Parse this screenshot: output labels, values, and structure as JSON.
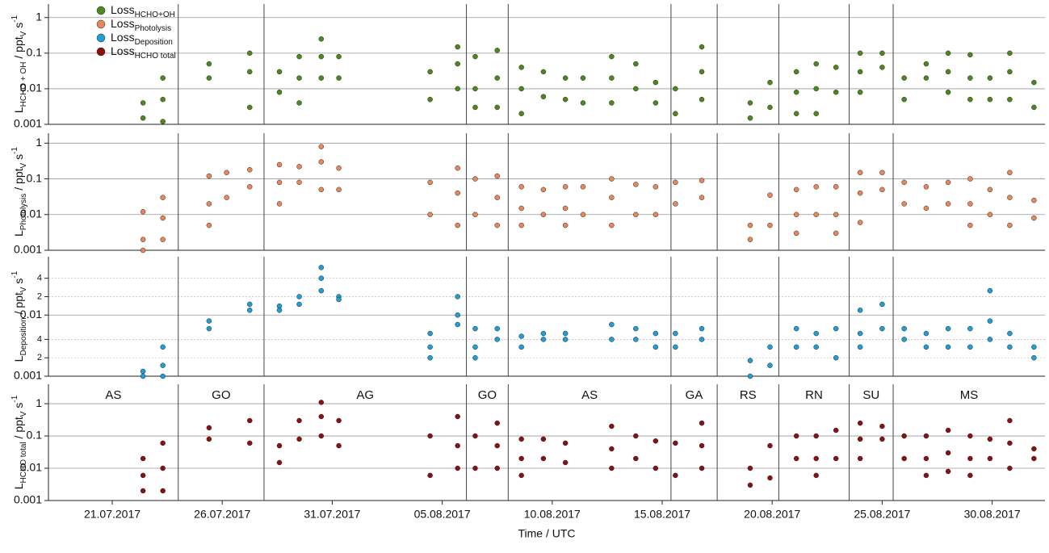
{
  "chart_data": [
    {
      "type": "scatter",
      "log_y": true,
      "grid": true,
      "legend": "upper left",
      "ylabel": [
        {
          "text": "L"
        },
        {
          "text": "HCHO + OH",
          "shift": "sub"
        },
        {
          "text": " / ppt"
        },
        {
          "text": "V",
          "shift": "sub"
        },
        {
          "text": " s"
        },
        {
          "text": "-1",
          "shift": "super"
        }
      ],
      "xlim": [
        199.1,
        244.4
      ],
      "ylim": [
        0.001,
        2.4
      ],
      "yticks": [
        0.001,
        0.01,
        0.1,
        1
      ],
      "series": [
        {
          "name": "Loss",
          "name_subscript": "HCHO+OH",
          "color": "#4a8a1c",
          "x": [
            203.4,
            203.4,
            204.3,
            204.3,
            204.3,
            206.4,
            206.4,
            208.25,
            208.25,
            208.25,
            209.6,
            209.6,
            210.5,
            210.5,
            210.5,
            211.5,
            211.5,
            211.5,
            212.3,
            212.3,
            216.45,
            216.45,
            217.7,
            217.7,
            217.7,
            218.5,
            218.5,
            218.5,
            219.5,
            219.5,
            219.5,
            220.6,
            220.6,
            220.6,
            221.6,
            221.6,
            222.6,
            222.6,
            223.4,
            223.4,
            224.7,
            224.7,
            224.7,
            225.8,
            225.8,
            226.7,
            226.7,
            227.6,
            227.6,
            228.8,
            228.8,
            228.8,
            231.0,
            231.0,
            231.9,
            231.9,
            233.1,
            233.1,
            233.1,
            234.0,
            234.0,
            234.0,
            234.9,
            234.9,
            236.0,
            236.0,
            236.0,
            237.0,
            237.0,
            238.0,
            238.0,
            239.0,
            239.0,
            240.0,
            240.0,
            240.0,
            241.0,
            241.0,
            241.0,
            241.9,
            241.9,
            242.8,
            242.8,
            242.8,
            243.9,
            243.9
          ],
          "values": [
            0.004,
            0.0015,
            0.02,
            0.005,
            0.0012,
            0.05,
            0.02,
            0.1,
            0.03,
            0.003,
            0.03,
            0.008,
            0.08,
            0.02,
            0.004,
            0.25,
            0.08,
            0.02,
            0.08,
            0.02,
            0.03,
            0.005,
            0.15,
            0.05,
            0.01,
            0.08,
            0.01,
            0.003,
            0.12,
            0.02,
            0.003,
            0.04,
            0.01,
            0.002,
            0.03,
            0.006,
            0.02,
            0.005,
            0.02,
            0.004,
            0.08,
            0.02,
            0.004,
            0.05,
            0.01,
            0.015,
            0.004,
            0.01,
            0.002,
            0.15,
            0.03,
            0.005,
            0.004,
            0.0015,
            0.015,
            0.003,
            0.03,
            0.008,
            0.002,
            0.05,
            0.01,
            0.002,
            0.04,
            0.008,
            0.1,
            0.03,
            0.008,
            0.1,
            0.04,
            0.02,
            0.005,
            0.05,
            0.02,
            0.1,
            0.03,
            0.008,
            0.09,
            0.02,
            0.005,
            0.02,
            0.005,
            0.1,
            0.03,
            0.005,
            0.015,
            0.003
          ]
        }
      ]
    },
    {
      "type": "scatter",
      "log_y": true,
      "grid": true,
      "ylabel": [
        {
          "text": "L"
        },
        {
          "text": "Photolysis",
          "shift": "sub"
        },
        {
          "text": " / ppt"
        },
        {
          "text": "V",
          "shift": "sub"
        },
        {
          "text": " s"
        },
        {
          "text": "-1",
          "shift": "super"
        }
      ],
      "xlim": [
        199.1,
        244.4
      ],
      "ylim": [
        0.001,
        1.9
      ],
      "yticks": [
        0.001,
        0.01,
        0.1,
        1
      ],
      "series": [
        {
          "name": "Loss",
          "name_subscript": "Photolysis",
          "color": "#e8875a",
          "x": [
            203.4,
            203.4,
            203.4,
            204.3,
            204.3,
            204.3,
            206.4,
            206.4,
            206.4,
            207.2,
            207.2,
            208.25,
            208.25,
            209.6,
            209.6,
            209.6,
            210.5,
            210.5,
            211.5,
            211.5,
            211.5,
            212.3,
            212.3,
            216.45,
            216.45,
            217.7,
            217.7,
            217.7,
            218.5,
            218.5,
            219.5,
            219.5,
            219.5,
            220.6,
            220.6,
            220.6,
            221.6,
            221.6,
            222.6,
            222.6,
            222.6,
            223.4,
            223.4,
            224.7,
            224.7,
            224.7,
            225.8,
            225.8,
            226.7,
            226.7,
            227.6,
            227.6,
            228.8,
            228.8,
            231.0,
            231.0,
            231.9,
            231.9,
            233.1,
            233.1,
            233.1,
            234.0,
            234.0,
            234.9,
            234.9,
            234.9,
            236.0,
            236.0,
            236.0,
            237.0,
            237.0,
            238.0,
            238.0,
            239.0,
            239.0,
            240.0,
            240.0,
            241.0,
            241.0,
            241.0,
            241.9,
            241.9,
            242.8,
            242.8,
            242.8,
            243.9,
            243.9
          ],
          "values": [
            0.012,
            0.002,
            0.001,
            0.03,
            0.008,
            0.002,
            0.12,
            0.02,
            0.005,
            0.15,
            0.03,
            0.18,
            0.06,
            0.25,
            0.08,
            0.02,
            0.22,
            0.08,
            0.8,
            0.3,
            0.05,
            0.2,
            0.05,
            0.08,
            0.01,
            0.2,
            0.04,
            0.005,
            0.1,
            0.01,
            0.12,
            0.03,
            0.005,
            0.06,
            0.015,
            0.005,
            0.05,
            0.01,
            0.06,
            0.015,
            0.005,
            0.06,
            0.01,
            0.1,
            0.03,
            0.005,
            0.07,
            0.01,
            0.06,
            0.01,
            0.08,
            0.02,
            0.09,
            0.03,
            0.005,
            0.002,
            0.035,
            0.005,
            0.05,
            0.01,
            0.003,
            0.06,
            0.01,
            0.06,
            0.01,
            0.003,
            0.15,
            0.04,
            0.006,
            0.15,
            0.05,
            0.08,
            0.02,
            0.06,
            0.015,
            0.08,
            0.02,
            0.1,
            0.02,
            0.005,
            0.05,
            0.01,
            0.15,
            0.03,
            0.005,
            0.025,
            0.008
          ]
        }
      ]
    },
    {
      "type": "scatter",
      "log_y": true,
      "grid": true,
      "ylabel": [
        {
          "text": "L"
        },
        {
          "text": "Deposition",
          "shift": "sub"
        },
        {
          "text": " / ppt"
        },
        {
          "text": "V",
          "shift": "sub"
        },
        {
          "text": " s"
        },
        {
          "text": "-1",
          "shift": "super"
        }
      ],
      "xlim": [
        199.1,
        244.4
      ],
      "ylim": [
        0.001,
        0.09
      ],
      "yticks": [
        0.001,
        {
          "value": 0.002,
          "label": "2"
        },
        {
          "value": 0.004,
          "label": "4"
        },
        0.01,
        {
          "value": 0.02,
          "label": "2"
        },
        {
          "value": 0.04,
          "label": "4"
        }
      ],
      "series": [
        {
          "name": "Loss",
          "name_subscript": "Deposition",
          "color": "#1e9fd8",
          "x": [
            203.4,
            203.4,
            204.3,
            204.3,
            204.3,
            206.4,
            206.4,
            208.25,
            208.25,
            209.6,
            209.6,
            210.5,
            210.5,
            211.5,
            211.5,
            211.5,
            212.3,
            212.3,
            216.45,
            216.45,
            216.45,
            217.7,
            217.7,
            217.7,
            218.5,
            218.5,
            218.5,
            219.5,
            219.5,
            220.6,
            220.6,
            221.6,
            221.6,
            222.6,
            222.6,
            224.7,
            224.7,
            225.8,
            225.8,
            226.7,
            226.7,
            227.6,
            227.6,
            228.8,
            228.8,
            231.0,
            231.0,
            231.9,
            231.9,
            233.1,
            233.1,
            234.0,
            234.0,
            234.9,
            234.9,
            236.0,
            236.0,
            236.0,
            237.0,
            237.0,
            238.0,
            238.0,
            239.0,
            239.0,
            240.0,
            240.0,
            241.0,
            241.0,
            241.9,
            241.9,
            241.9,
            242.8,
            242.8,
            243.9,
            243.9
          ],
          "values": [
            0.0012,
            0.001,
            0.003,
            0.0015,
            0.001,
            0.008,
            0.006,
            0.015,
            0.012,
            0.014,
            0.012,
            0.02,
            0.015,
            0.06,
            0.04,
            0.025,
            0.02,
            0.018,
            0.005,
            0.003,
            0.002,
            0.02,
            0.01,
            0.007,
            0.006,
            0.003,
            0.002,
            0.006,
            0.004,
            0.0045,
            0.003,
            0.005,
            0.004,
            0.005,
            0.004,
            0.007,
            0.004,
            0.006,
            0.004,
            0.005,
            0.003,
            0.005,
            0.003,
            0.006,
            0.004,
            0.0018,
            0.001,
            0.003,
            0.0015,
            0.006,
            0.003,
            0.005,
            0.003,
            0.006,
            0.002,
            0.012,
            0.005,
            0.003,
            0.015,
            0.006,
            0.006,
            0.004,
            0.005,
            0.003,
            0.006,
            0.003,
            0.006,
            0.003,
            0.025,
            0.008,
            0.004,
            0.005,
            0.003,
            0.003,
            0.002
          ]
        }
      ]
    },
    {
      "type": "scatter",
      "log_y": true,
      "grid": true,
      "ylabel": [
        {
          "text": "L"
        },
        {
          "text": "HCHO total",
          "shift": "sub"
        },
        {
          "text": " / ppt"
        },
        {
          "text": "V",
          "shift": "sub"
        },
        {
          "text": " s"
        },
        {
          "text": "-1",
          "shift": "super"
        }
      ],
      "xlabel": "Time / UTC",
      "xlim": [
        199.1,
        244.4
      ],
      "ylim": [
        0.001,
        4
      ],
      "yticks": [
        0.001,
        0.01,
        0.1,
        1
      ],
      "xticks": [
        {
          "value": 202,
          "label": "21.07.2017"
        },
        {
          "value": 207,
          "label": "26.07.2017"
        },
        {
          "value": 212,
          "label": "31.07.2017"
        },
        {
          "value": 217,
          "label": "05.08.2017"
        },
        {
          "value": 222,
          "label": "10.08.2017"
        },
        {
          "value": 227,
          "label": "15.08.2017"
        },
        {
          "value": 232,
          "label": "20.08.2017"
        },
        {
          "value": 237,
          "label": "25.08.2017"
        },
        {
          "value": 242,
          "label": "30.08.2017"
        }
      ],
      "regions": {
        "labels": [
          "AS",
          "GO",
          "AG",
          "GO",
          "AS",
          "GA",
          "RS",
          "RN",
          "SU",
          "MS"
        ],
        "bounds": [
          205.0,
          208.9,
          218.1,
          220.0,
          227.4,
          229.5,
          232.3,
          235.5,
          237.5
        ]
      },
      "series": [
        {
          "name": "Loss",
          "name_subscript": "HCHO total",
          "color": "#8b1010",
          "x": [
            203.4,
            203.4,
            203.4,
            204.3,
            204.3,
            204.3,
            206.4,
            206.4,
            208.25,
            208.25,
            209.6,
            209.6,
            210.5,
            210.5,
            211.5,
            211.5,
            211.5,
            212.3,
            212.3,
            216.45,
            216.45,
            217.7,
            217.7,
            217.7,
            218.5,
            218.5,
            219.5,
            219.5,
            219.5,
            220.6,
            220.6,
            220.6,
            221.6,
            221.6,
            222.6,
            222.6,
            224.7,
            224.7,
            224.7,
            225.8,
            225.8,
            226.7,
            226.7,
            227.6,
            227.6,
            228.8,
            228.8,
            228.8,
            231.0,
            231.0,
            231.9,
            231.9,
            233.1,
            233.1,
            234.0,
            234.0,
            234.0,
            234.9,
            234.9,
            236.0,
            236.0,
            236.0,
            237.0,
            237.0,
            238.0,
            238.0,
            239.0,
            239.0,
            239.0,
            240.0,
            240.0,
            240.0,
            241.0,
            241.0,
            241.0,
            241.9,
            241.9,
            242.8,
            242.8,
            242.8,
            243.9,
            243.9
          ],
          "values": [
            0.02,
            0.006,
            0.002,
            0.06,
            0.01,
            0.002,
            0.18,
            0.08,
            0.3,
            0.06,
            0.05,
            0.015,
            0.3,
            0.08,
            1.1,
            0.4,
            0.1,
            0.3,
            0.05,
            0.1,
            0.006,
            0.4,
            0.05,
            0.01,
            0.1,
            0.01,
            0.25,
            0.05,
            0.01,
            0.08,
            0.02,
            0.006,
            0.08,
            0.02,
            0.06,
            0.015,
            0.2,
            0.04,
            0.01,
            0.1,
            0.02,
            0.07,
            0.01,
            0.06,
            0.006,
            0.25,
            0.05,
            0.01,
            0.01,
            0.003,
            0.05,
            0.005,
            0.1,
            0.02,
            0.1,
            0.02,
            0.006,
            0.15,
            0.02,
            0.25,
            0.08,
            0.02,
            0.2,
            0.08,
            0.1,
            0.02,
            0.1,
            0.02,
            0.006,
            0.15,
            0.03,
            0.008,
            0.1,
            0.02,
            0.006,
            0.08,
            0.02,
            0.3,
            0.06,
            0.01,
            0.04,
            0.02
          ]
        }
      ]
    }
  ]
}
